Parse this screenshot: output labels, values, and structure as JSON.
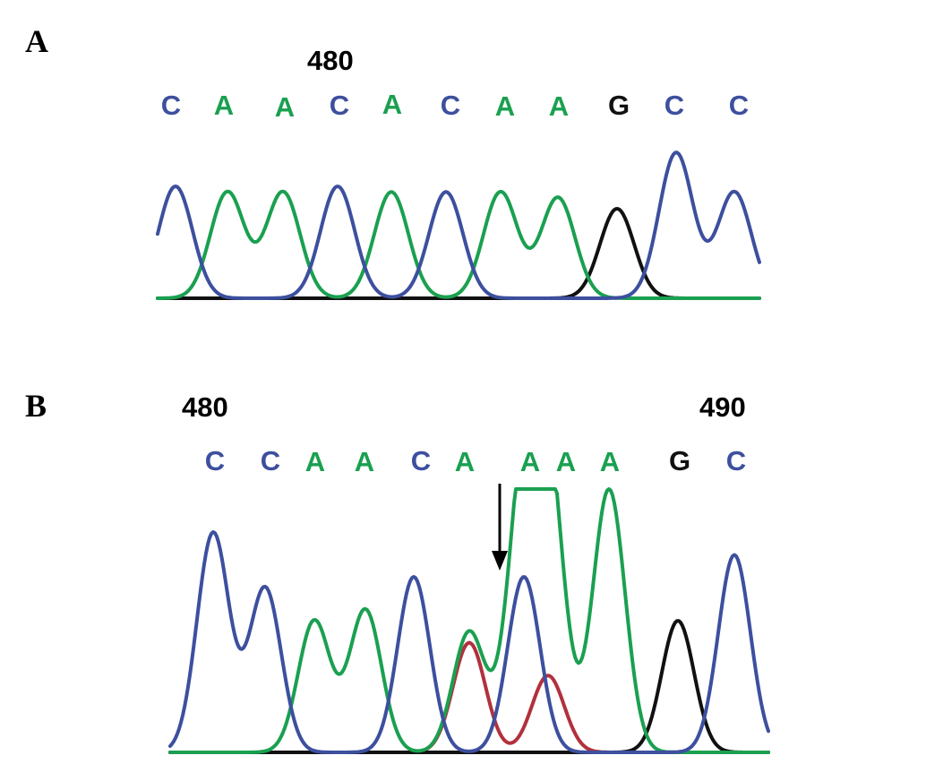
{
  "colors": {
    "C": "#3d4f9e",
    "A": "#1aa050",
    "G": "#111111",
    "T": "#b2303d"
  },
  "chart_data": [
    {
      "type": "line",
      "panel": "A",
      "position_labels": [
        "480"
      ],
      "bases": [
        "C",
        "A",
        "A",
        "C",
        "A",
        "C",
        "A",
        "A",
        "G",
        "C",
        "C"
      ],
      "traces": [
        {
          "base": "C",
          "peaks": [
            1.0,
            0,
            0,
            1.0,
            0,
            0.95,
            0,
            0,
            0,
            1.3,
            0.95
          ]
        },
        {
          "base": "A",
          "peaks": [
            0,
            0.95,
            0.95,
            0,
            0.95,
            0,
            0.95,
            0.9,
            0,
            0,
            0
          ]
        },
        {
          "base": "G",
          "peaks": [
            0,
            0,
            0,
            0,
            0,
            0,
            0,
            0,
            0.8,
            0,
            0
          ]
        }
      ]
    },
    {
      "type": "line",
      "panel": "B",
      "position_labels": [
        "480",
        "490"
      ],
      "bases": [
        "C",
        "C",
        "A",
        "A",
        "C",
        "A",
        "A",
        "A",
        "A",
        "G",
        "C"
      ],
      "annotation": "arrow",
      "traces": [
        {
          "base": "C",
          "peaks": [
            1.0,
            0.75,
            0,
            0,
            0.8,
            0,
            0.8,
            0,
            0,
            0,
            0.9
          ]
        },
        {
          "base": "A",
          "peaks": [
            0,
            0,
            0.6,
            0.65,
            0,
            0.55,
            1.2,
            1.2,
            1.2,
            0,
            0
          ]
        },
        {
          "base": "G",
          "peaks": [
            0,
            0,
            0,
            0,
            0,
            0,
            0,
            0,
            0,
            0.6,
            0
          ]
        },
        {
          "base": "T",
          "peaks": [
            0,
            0,
            0,
            0,
            0,
            0.5,
            0,
            0.35,
            0,
            0,
            0
          ]
        }
      ]
    }
  ]
}
